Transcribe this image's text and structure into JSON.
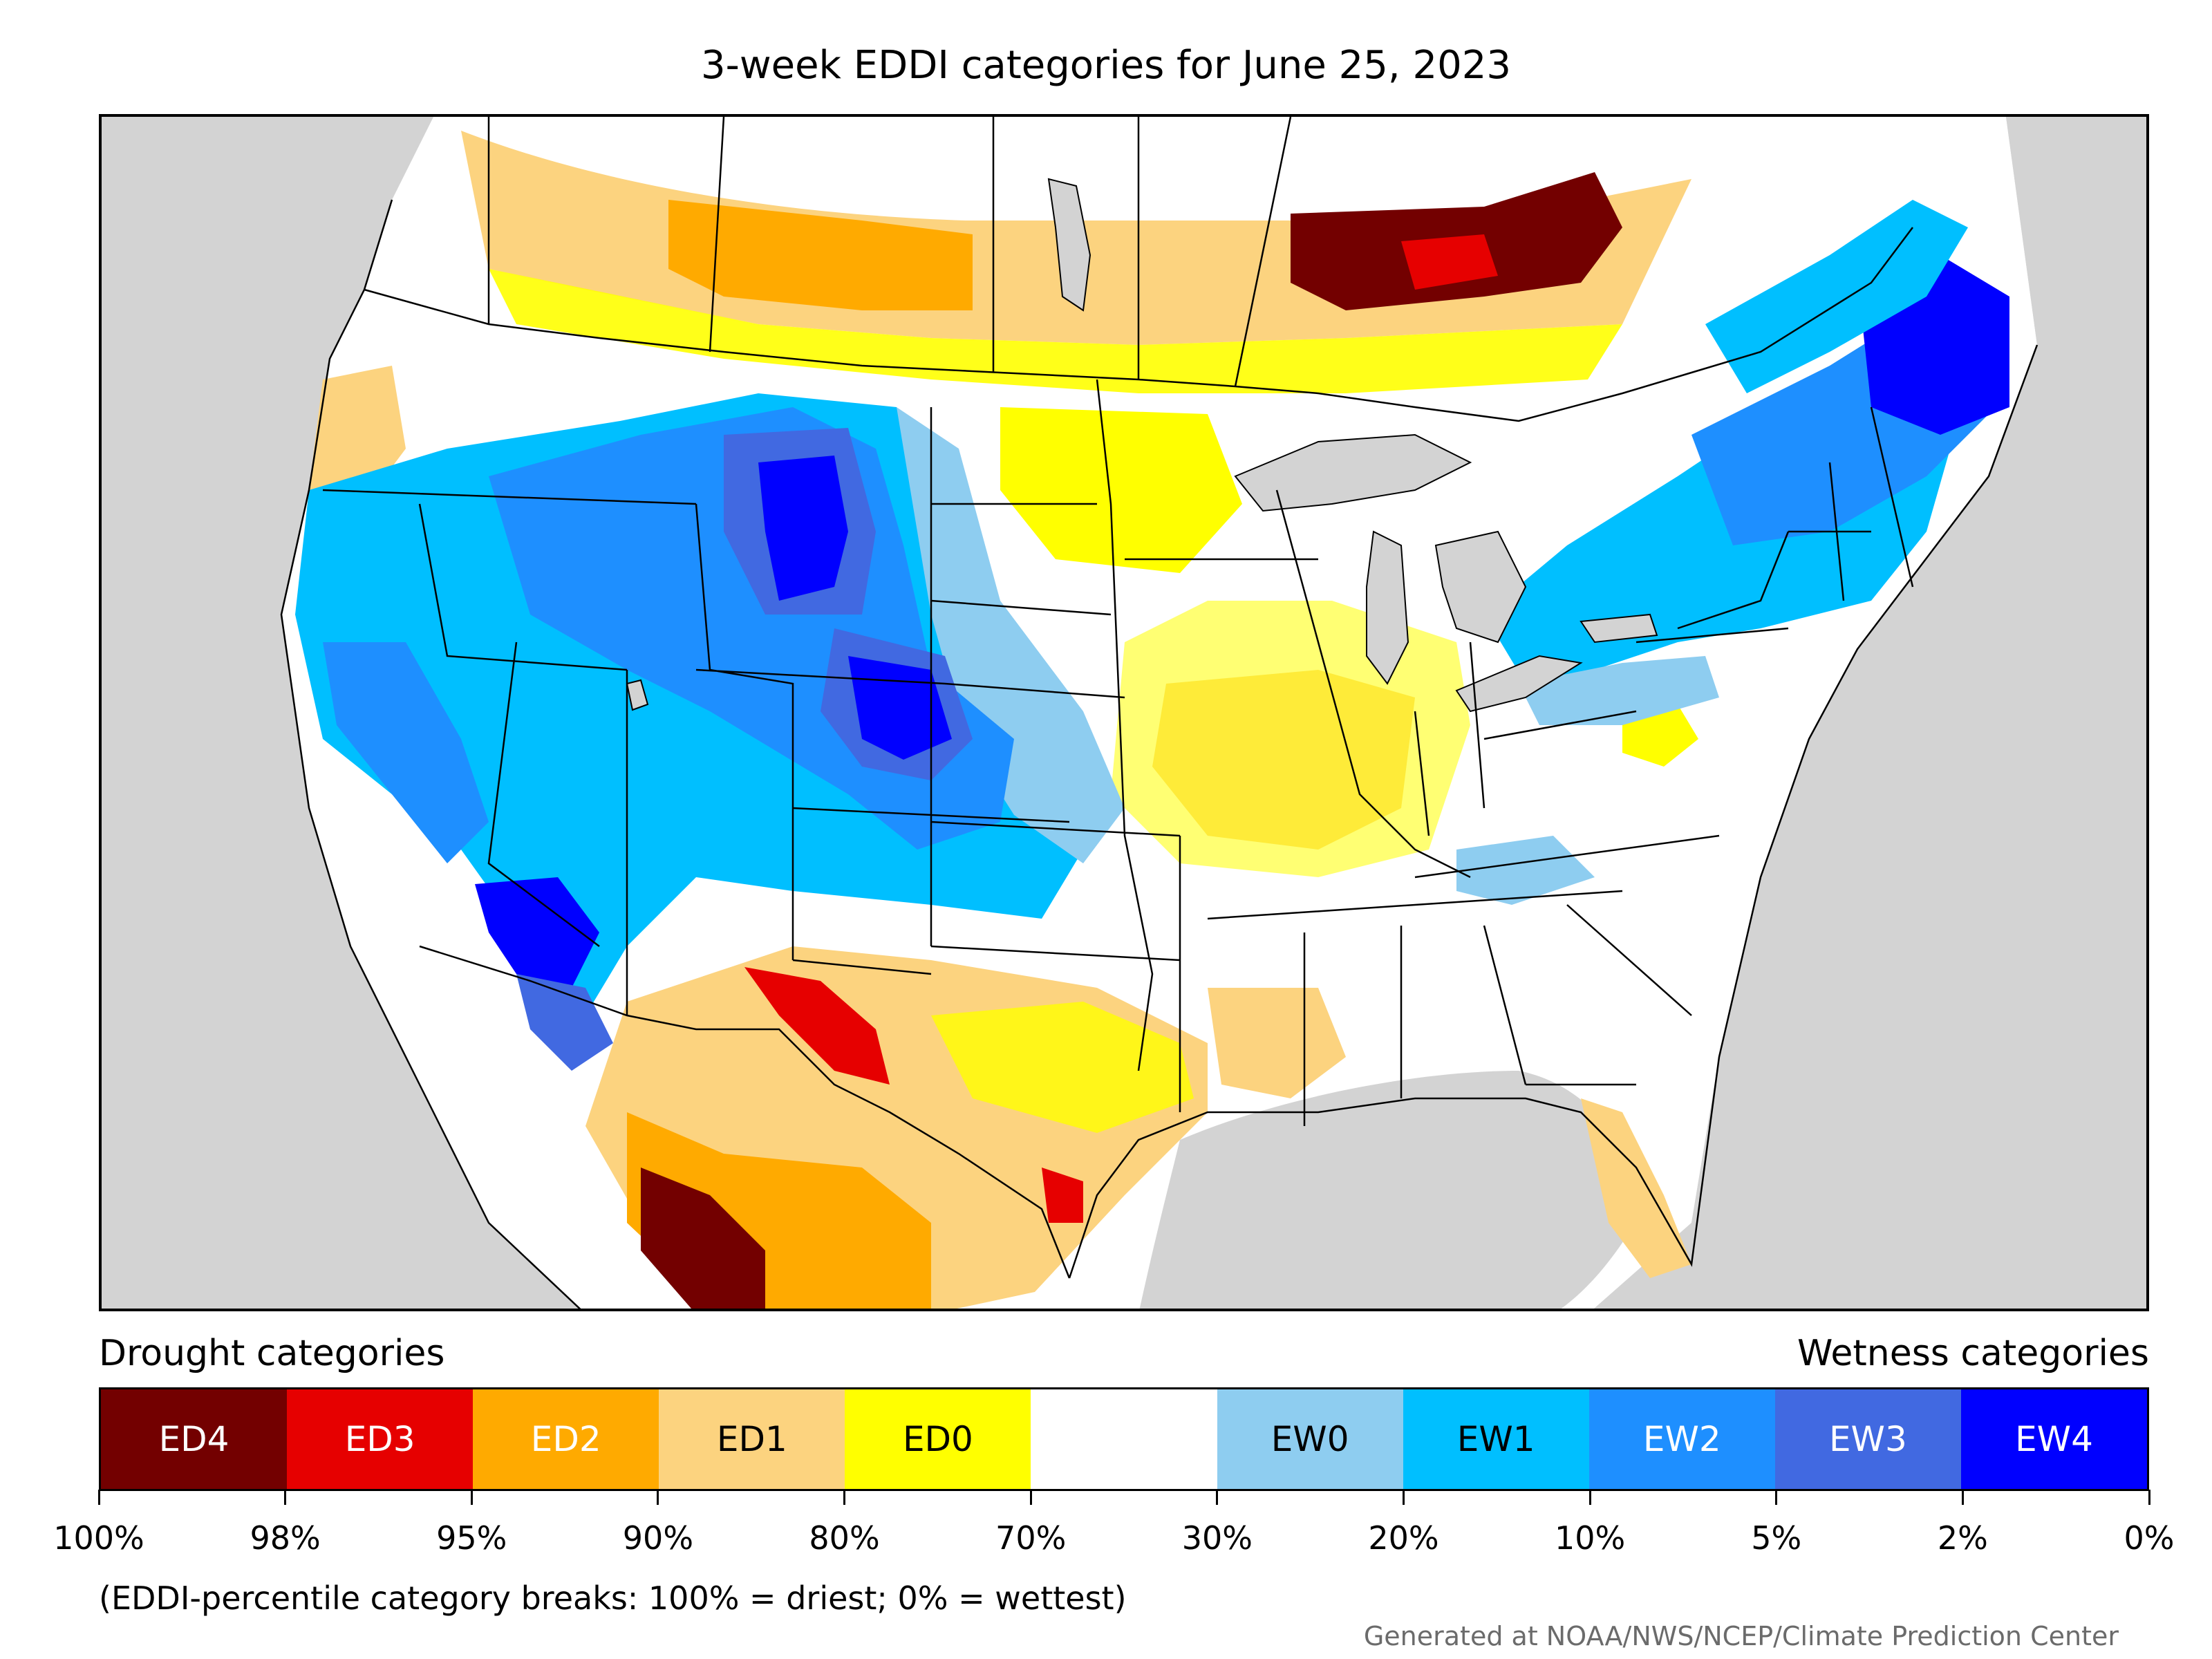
{
  "title": "3-week EDDI categories for June 25, 2023",
  "legend": {
    "drought_label": "Drought categories",
    "wetness_label": "Wetness categories",
    "categories": [
      {
        "label": "ED4",
        "color": "#730000",
        "text_color": "#ffffff"
      },
      {
        "label": "ED3",
        "color": "#e60000",
        "text_color": "#ffffff"
      },
      {
        "label": "ED2",
        "color": "#ffaa00",
        "text_color": "#ffffff"
      },
      {
        "label": "ED1",
        "color": "#fcd37f",
        "text_color": "#000000"
      },
      {
        "label": "ED0",
        "color": "#ffff00",
        "text_color": "#000000"
      },
      {
        "label": "",
        "color": "#ffffff",
        "text_color": "#000000"
      },
      {
        "label": "EW0",
        "color": "#8ecdf0",
        "text_color": "#000000"
      },
      {
        "label": "EW1",
        "color": "#00bfff",
        "text_color": "#000000"
      },
      {
        "label": "EW2",
        "color": "#1e8fff",
        "text_color": "#ffffff"
      },
      {
        "label": "EW3",
        "color": "#4169e1",
        "text_color": "#ffffff"
      },
      {
        "label": "EW4",
        "color": "#0000ff",
        "text_color": "#ffffff"
      }
    ],
    "ticks": [
      "100%",
      "98%",
      "95%",
      "90%",
      "80%",
      "70%",
      "30%",
      "20%",
      "10%",
      "5%",
      "2%",
      "0%"
    ]
  },
  "footnote": "(EDDI-percentile category breaks: 100% = driest; 0% = wettest)",
  "credit": "Generated at NOAA/NWS/NCEP/Climate Prediction Center",
  "map": {
    "background_color": "#d3d3d3",
    "no_anomaly_color": "#ffffff",
    "boundary_color": "#000000"
  }
}
